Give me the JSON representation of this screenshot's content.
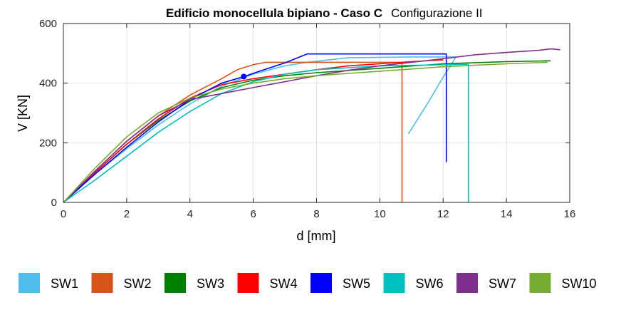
{
  "chart_data": {
    "type": "line",
    "title": "Edificio monocellula bipiano - Caso C",
    "subtitle": "Configurazione II",
    "xlabel": "d [mm]",
    "ylabel": "V [KN]",
    "xlim": [
      0,
      16
    ],
    "ylim": [
      0,
      600
    ],
    "xticks": [
      0,
      2,
      4,
      6,
      8,
      10,
      12,
      14,
      16
    ],
    "yticks": [
      0,
      200,
      400,
      600
    ],
    "grid": true,
    "legend": "bottom",
    "series": [
      {
        "name": "SW1",
        "color": "#4DBEEE",
        "x": [
          0,
          1,
          2,
          3,
          4,
          5,
          6,
          7,
          7.7,
          9,
          11,
          12.4,
          12.3,
          12.0,
          11.5,
          10.9
        ],
        "y": [
          0,
          95,
          180,
          260,
          330,
          390,
          430,
          458,
          470,
          485,
          488,
          488,
          470,
          420,
          330,
          230
        ]
      },
      {
        "name": "SW2",
        "color": "#D95319",
        "x": [
          0,
          1,
          2,
          3,
          4,
          5,
          5.5,
          6.0,
          6.4,
          7,
          8,
          10.7,
          10.7
        ],
        "y": [
          0,
          105,
          205,
          290,
          360,
          415,
          445,
          462,
          470,
          470,
          470,
          470,
          0
        ]
      },
      {
        "name": "SW3",
        "color": "#008000",
        "x": [
          0,
          1,
          2,
          3,
          4,
          5,
          6,
          7,
          8,
          10,
          12,
          14,
          15.4
        ],
        "y": [
          0,
          100,
          195,
          275,
          340,
          385,
          410,
          425,
          435,
          450,
          465,
          472,
          475
        ]
      },
      {
        "name": "SW4",
        "color": "#FF0000",
        "x": [
          0,
          1,
          2,
          3,
          4,
          5,
          6,
          7,
          8,
          9,
          10,
          11,
          12
        ],
        "y": [
          0,
          100,
          195,
          280,
          350,
          395,
          415,
          430,
          445,
          458,
          465,
          472,
          478
        ]
      },
      {
        "name": "SW5",
        "color": "#0000FF",
        "x": [
          0,
          1,
          2,
          3,
          4,
          5,
          5.7,
          6.2,
          7.0,
          7.7,
          10,
          12.1,
          12.1
        ],
        "y": [
          0,
          95,
          185,
          270,
          345,
          400,
          422,
          440,
          468,
          498,
          498,
          498,
          135
        ]
      },
      {
        "name": "SW6",
        "color": "#00BFBF",
        "x": [
          0,
          1,
          2,
          3,
          4,
          5,
          6,
          7,
          8,
          10,
          12.8,
          12.8
        ],
        "y": [
          0,
          75,
          155,
          235,
          305,
          365,
          405,
          430,
          445,
          458,
          463,
          0
        ]
      },
      {
        "name": "SW7",
        "color": "#7E2F8E",
        "x": [
          0,
          1,
          2,
          3,
          4,
          5,
          6,
          7,
          8,
          9,
          10,
          11,
          12,
          13,
          14,
          15,
          15.4,
          15.7
        ],
        "y": [
          0,
          105,
          205,
          290,
          345,
          365,
          385,
          405,
          425,
          443,
          458,
          470,
          482,
          495,
          503,
          510,
          515,
          512
        ]
      },
      {
        "name": "SW10",
        "color": "#77AC30",
        "x": [
          0,
          1,
          2,
          3,
          4,
          5,
          6,
          7,
          8,
          10,
          12,
          14,
          15.3
        ],
        "y": [
          0,
          115,
          220,
          300,
          350,
          380,
          400,
          415,
          425,
          440,
          455,
          465,
          470
        ]
      }
    ]
  }
}
